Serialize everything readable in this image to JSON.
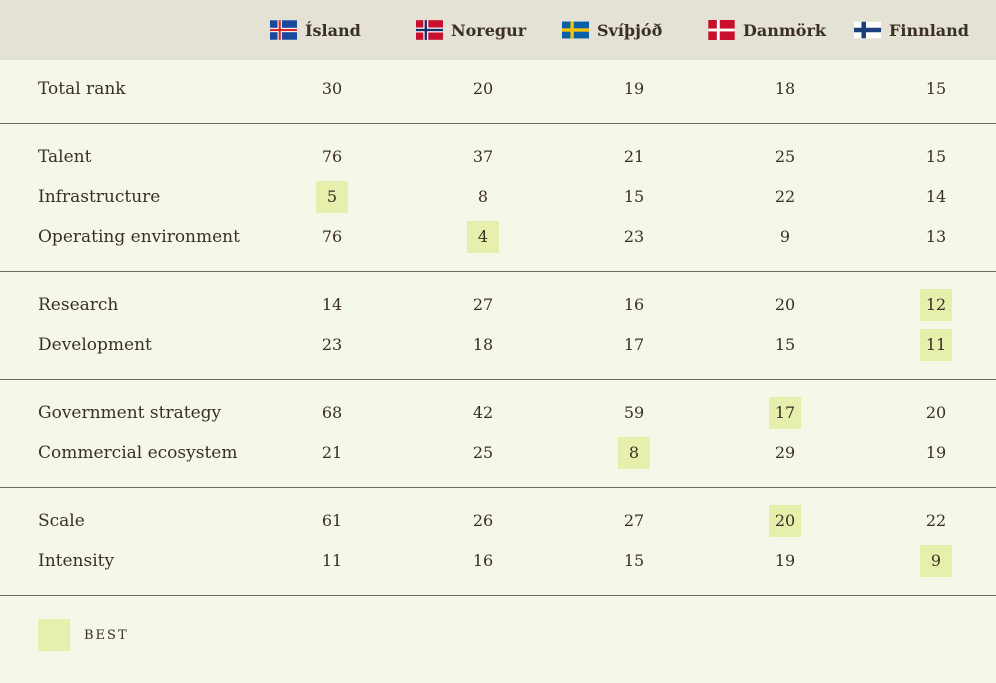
{
  "colors": {
    "background": "#f5f7e9",
    "header_background": "#e3e2d4",
    "best_highlight": "#e6f0ac",
    "text": "#3a2e25",
    "divider": "#6e655c"
  },
  "legend": {
    "best_label": "BEST"
  },
  "chart_data": {
    "type": "table",
    "columns": [
      {
        "name": "Ísland",
        "flag": "iceland-flag"
      },
      {
        "name": "Noregur",
        "flag": "norway-flag"
      },
      {
        "name": "Svíþjóð",
        "flag": "sweden-flag"
      },
      {
        "name": "Danmörk",
        "flag": "denmark-flag"
      },
      {
        "name": "Finnland",
        "flag": "finland-flag"
      }
    ],
    "groups": [
      {
        "rows": [
          {
            "label": "Total rank",
            "values": [
              30,
              20,
              19,
              18,
              15
            ],
            "best_index": null
          }
        ]
      },
      {
        "rows": [
          {
            "label": "Talent",
            "values": [
              76,
              37,
              21,
              25,
              15
            ],
            "best_index": null
          },
          {
            "label": "Infrastructure",
            "values": [
              5,
              8,
              15,
              22,
              14
            ],
            "best_index": 0
          },
          {
            "label": "Operating environment",
            "values": [
              76,
              4,
              23,
              9,
              13
            ],
            "best_index": 1
          }
        ]
      },
      {
        "rows": [
          {
            "label": "Research",
            "values": [
              14,
              27,
              16,
              20,
              12
            ],
            "best_index": 4
          },
          {
            "label": "Development",
            "values": [
              23,
              18,
              17,
              15,
              11
            ],
            "best_index": 4
          }
        ]
      },
      {
        "rows": [
          {
            "label": "Government strategy",
            "values": [
              68,
              42,
              59,
              17,
              20
            ],
            "best_index": 3
          },
          {
            "label": "Commercial ecosystem",
            "values": [
              21,
              25,
              8,
              29,
              19
            ],
            "best_index": 2
          }
        ]
      },
      {
        "rows": [
          {
            "label": "Scale",
            "values": [
              61,
              26,
              27,
              20,
              22
            ],
            "best_index": 3
          },
          {
            "label": "Intensity",
            "values": [
              11,
              16,
              15,
              19,
              9
            ],
            "best_index": 4
          }
        ]
      }
    ]
  }
}
